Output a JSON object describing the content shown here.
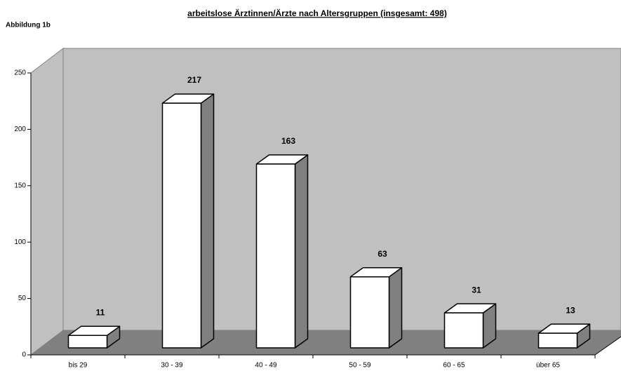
{
  "chart_data": {
    "type": "bar3d",
    "title": "arbeitslose Ärztinnen/Ärzte nach Altersgruppen (insgesamt: 498)",
    "annotation": "Abbildung 1b",
    "categories": [
      "bis 29",
      "30 - 39",
      "40 - 49",
      "50 - 59",
      "60 - 65",
      "über 65"
    ],
    "values": [
      11,
      217,
      163,
      63,
      31,
      13
    ],
    "color": "#ffffff",
    "ylim": [
      0,
      250
    ],
    "yticks": [
      0,
      50,
      100,
      150,
      200,
      250
    ]
  }
}
